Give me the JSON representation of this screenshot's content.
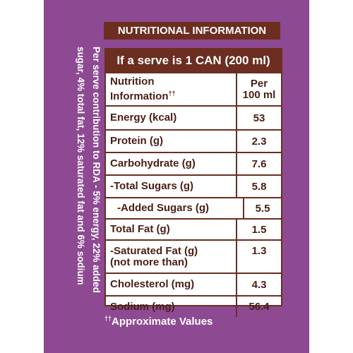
{
  "title": "NUTRITIONAL INFORMATION",
  "rda_note": [
    "Per serve contribution to RDA - 5% energy, 22% added",
    "sugar, 4% total fat, 12% saturated fat and 6% sodium"
  ],
  "table": {
    "serve": "If a serve is 1 CAN (200 ml)",
    "header": {
      "label": [
        "Nutrition",
        "Information",
        "††"
      ],
      "per": [
        "Per",
        "100 ml"
      ]
    },
    "rows": [
      {
        "label": [
          "Energy (kcal)"
        ],
        "value": "53"
      },
      {
        "label": [
          "Protein (g)"
        ],
        "value": "2.3"
      },
      {
        "label": [
          "Carbohydrate (g)"
        ],
        "value": "7.6"
      },
      {
        "label": [
          "-Total Sugars (g)"
        ],
        "value": "5.8"
      },
      {
        "label": [
          "-Added Sugars (g)"
        ],
        "value": "5.5"
      },
      {
        "label": [
          "Total Fat (g)"
        ],
        "value": "1.5"
      },
      {
        "label": [
          "-Saturated Fat (g)",
          "(not more than)"
        ],
        "value": "1.3"
      },
      {
        "label": [
          "Cholesterol (mg)"
        ],
        "value": "4.3"
      },
      {
        "label": [
          "Sodium (mg)"
        ],
        "value": "56.4"
      }
    ]
  },
  "footnote": {
    "mark": "††",
    "text": "Approximate Values"
  }
}
